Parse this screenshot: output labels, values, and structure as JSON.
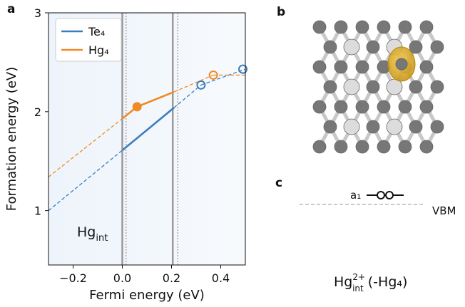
{
  "chart_data": {
    "type": "line",
    "panel_label": "a",
    "xlabel": "Fermi energy (eV)",
    "ylabel": "Formation energy (eV)",
    "xlim": [
      -0.3,
      0.5
    ],
    "ylim": [
      0.45,
      3
    ],
    "xticks": [
      {
        "value": -0.2,
        "label": "−0.2"
      },
      {
        "value": 0,
        "label": "0.0"
      },
      0.2,
      0.4
    ],
    "yticks": [
      1,
      2,
      3
    ],
    "annotation": {
      "text": "Hg",
      "sub": "int"
    },
    "vlines": [
      {
        "x": 0,
        "style": "solid"
      },
      {
        "x": 0.015,
        "style": "dotted"
      },
      {
        "x": 0.205,
        "style": "solid"
      },
      {
        "x": 0.225,
        "style": "dotted"
      }
    ],
    "series": [
      {
        "name": "Te₄",
        "color": "#3a7dbf",
        "x": [
          -0.3,
          0,
          0.21,
          0.32,
          0.5
        ],
        "values": [
          1.0,
          1.61,
          2.04,
          2.27,
          2.43
        ],
        "linestyle": [
          "dashed",
          "solid",
          "dashed",
          "dashed"
        ],
        "markers": {
          "x": [
            0.32,
            0.49
          ],
          "values": [
            2.27,
            2.43
          ],
          "filled": [
            false,
            false
          ]
        }
      },
      {
        "name": "Hg₄",
        "color": "#f08a24",
        "x": [
          -0.3,
          0,
          0.06,
          0.21,
          0.37,
          0.5
        ],
        "values": [
          1.34,
          1.93,
          2.05,
          2.2,
          2.37,
          2.37
        ],
        "linestyle": [
          "dashed",
          "solid",
          "solid",
          "dashed",
          "dashed"
        ],
        "markers": {
          "x": [
            0.06,
            0.37
          ],
          "values": [
            2.05,
            2.37
          ],
          "filled": [
            true,
            false
          ]
        }
      }
    ]
  },
  "panel_b": {
    "label": "b"
  },
  "panel_c": {
    "label": "c",
    "level": "a₁",
    "band": "VBM",
    "caption": {
      "text": "Hg",
      "sup": "2+",
      "sub": "int",
      "rest": " (-Hg₄)"
    }
  }
}
